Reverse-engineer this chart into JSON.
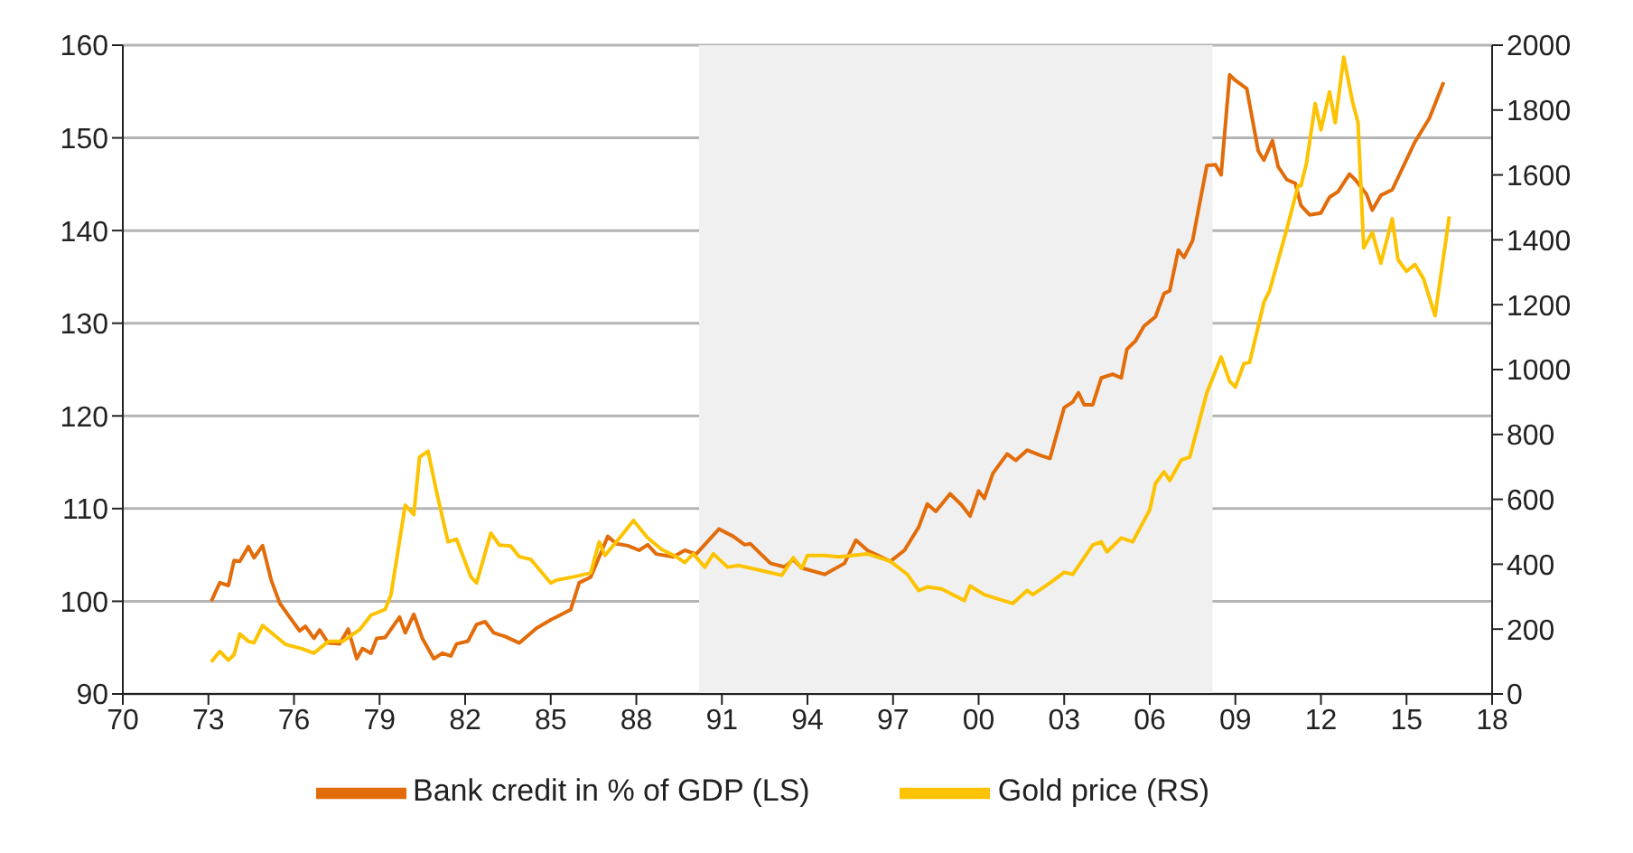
{
  "chart_data": {
    "type": "line",
    "xlim": [
      1970,
      2018
    ],
    "xticks": [
      {
        "value": 1970,
        "label": "70"
      },
      {
        "value": 1973,
        "label": "73"
      },
      {
        "value": 1976,
        "label": "76"
      },
      {
        "value": 1979,
        "label": "79"
      },
      {
        "value": 1982,
        "label": "82"
      },
      {
        "value": 1985,
        "label": "85"
      },
      {
        "value": 1988,
        "label": "88"
      },
      {
        "value": 1991,
        "label": "91"
      },
      {
        "value": 1994,
        "label": "94"
      },
      {
        "value": 1997,
        "label": "97"
      },
      {
        "value": 2000,
        "label": "00"
      },
      {
        "value": 2003,
        "label": "03"
      },
      {
        "value": 2006,
        "label": "06"
      },
      {
        "value": 2009,
        "label": "09"
      },
      {
        "value": 2012,
        "label": "12"
      },
      {
        "value": 2015,
        "label": "15"
      },
      {
        "value": 2018,
        "label": "18"
      }
    ],
    "ylim": [
      90,
      160
    ],
    "yticks": [
      90,
      100,
      110,
      120,
      130,
      140,
      150,
      160
    ],
    "y2lim": [
      0,
      2000
    ],
    "y2ticks": [
      0,
      200,
      400,
      600,
      800,
      1000,
      1200,
      1400,
      1600,
      1800,
      2000
    ],
    "grid": "y",
    "legend": "bottom",
    "marker": "none",
    "line_style": "solid",
    "bands": [
      {
        "axis": "x",
        "from": 1990.2,
        "to": 2008.2,
        "color": "#f0f0f0"
      }
    ],
    "series": [
      {
        "name": "Bank credit in % of GDP (LS)",
        "color": "#e36c0a",
        "x": [
          1973.1,
          1973.4,
          1973.7,
          1973.9,
          1974.1,
          1974.4,
          1974.6,
          1974.9,
          1975.2,
          1975.5,
          1975.8,
          1976.2,
          1976.4,
          1976.7,
          1976.9,
          1977.2,
          1977.6,
          1977.9,
          1978.2,
          1978.4,
          1978.7,
          1978.9,
          1979.2,
          1979.7,
          1979.9,
          1980.2,
          1980.5,
          1980.9,
          1981.2,
          1981.5,
          1981.7,
          1982.1,
          1982.4,
          1982.7,
          1983.0,
          1983.4,
          1983.9,
          1984.5,
          1985.0,
          1985.7,
          1986.0,
          1986.4,
          1986.7,
          1987.0,
          1987.3,
          1987.7,
          1988.1,
          1988.4,
          1988.7,
          1989.3,
          1989.7,
          1990.1,
          1990.9,
          1991.4,
          1991.8,
          1992.0,
          1992.7,
          1993.2,
          1993.5,
          1993.8,
          1994.6,
          1995.3,
          1995.7,
          1996.1,
          1996.9,
          1997.4,
          1997.9,
          1998.2,
          1998.5,
          1999.0,
          1999.4,
          1999.7,
          2000.0,
          2000.2,
          2000.5,
          2001.0,
          2001.3,
          2001.7,
          2002.2,
          2002.5,
          2003.0,
          2003.3,
          2003.5,
          2003.7,
          2004.0,
          2004.3,
          2004.7,
          2005.0,
          2005.2,
          2005.5,
          2005.8,
          2006.2,
          2006.5,
          2006.7,
          2007.0,
          2007.2,
          2007.5,
          2008.0,
          2008.3,
          2008.5,
          2008.8,
          2009.0,
          2009.4,
          2009.8,
          2010.0,
          2010.3,
          2010.5,
          2010.8,
          2011.1,
          2011.3,
          2011.6,
          2012.0,
          2012.3,
          2012.6,
          2013.0,
          2013.2,
          2013.6,
          2013.8,
          2014.1,
          2014.5,
          2015.3,
          2015.8,
          2016.3
        ],
        "values": [
          100,
          102,
          101.7,
          104.4,
          104.3,
          105.9,
          104.7,
          106,
          102.3,
          99.8,
          98.5,
          96.8,
          97.3,
          96,
          96.9,
          95.5,
          95.4,
          97,
          93.8,
          94.9,
          94.4,
          96,
          96.1,
          98.3,
          96.6,
          98.6,
          96,
          93.8,
          94.4,
          94.1,
          95.4,
          95.7,
          97.5,
          97.8,
          96.6,
          96.2,
          95.5,
          97.1,
          98,
          99.1,
          102,
          102.6,
          104.8,
          107,
          106.2,
          106,
          105.5,
          106.1,
          105.1,
          104.8,
          105.5,
          105.1,
          107.8,
          107,
          106.1,
          106.2,
          104.1,
          103.7,
          104.5,
          103.6,
          102.9,
          104.1,
          106.6,
          105.5,
          104.3,
          105.5,
          108,
          110.5,
          109.7,
          111.6,
          110.4,
          109.2,
          111.9,
          111.1,
          113.8,
          115.9,
          115.2,
          116.3,
          115.7,
          115.4,
          120.9,
          121.5,
          122.5,
          121.2,
          121.2,
          124.1,
          124.5,
          124.1,
          127.2,
          128.1,
          129.7,
          130.7,
          133.2,
          133.5,
          137.9,
          137.1,
          138.9,
          147,
          147.1,
          146,
          156.8,
          156.2,
          155.3,
          148.6,
          147.6,
          149.7,
          146.9,
          145.5,
          145.1,
          142.7,
          141.7,
          141.9,
          143.6,
          144.2,
          146.1,
          145.5,
          143.9,
          142.2,
          143.8,
          144.4,
          149.6,
          152.1,
          156
        ]
      },
      {
        "name": "Gold price (RS)",
        "color": "#fdc300",
        "axis": "y2",
        "x": [
          1973.1,
          1973.4,
          1973.7,
          1973.9,
          1974.1,
          1974.4,
          1974.6,
          1974.9,
          1975.7,
          1976.3,
          1976.7,
          1977.2,
          1977.7,
          1978.3,
          1978.7,
          1979.2,
          1979.4,
          1979.9,
          1980.2,
          1980.4,
          1980.7,
          1981.0,
          1981.4,
          1981.7,
          1982.2,
          1982.4,
          1982.9,
          1983.2,
          1983.6,
          1983.9,
          1984.3,
          1985.0,
          1985.2,
          1985.8,
          1986.4,
          1986.7,
          1986.9,
          1987.5,
          1987.9,
          1988.4,
          1988.9,
          1989.4,
          1989.7,
          1990.0,
          1990.4,
          1990.7,
          1991.2,
          1991.6,
          1992.5,
          1993.1,
          1993.5,
          1993.8,
          1994.0,
          1994.6,
          1995.1,
          1996.1,
          1996.9,
          1997.5,
          1997.9,
          1998.2,
          1998.7,
          1999.5,
          1999.7,
          2000.2,
          2001.2,
          2001.7,
          2001.9,
          2002.5,
          2003.0,
          2003.3,
          2004.0,
          2004.3,
          2004.5,
          2005.0,
          2005.4,
          2006.0,
          2006.2,
          2006.5,
          2006.7,
          2007.1,
          2007.4,
          2008.0,
          2008.5,
          2008.8,
          2009.0,
          2009.3,
          2009.5,
          2010.0,
          2010.2,
          2010.8,
          2011.2,
          2011.3,
          2011.5,
          2011.8,
          2012.0,
          2012.3,
          2012.5,
          2012.8,
          2013.1,
          2013.3,
          2013.5,
          2013.8,
          2014.1,
          2014.5,
          2014.7,
          2015.0,
          2015.3,
          2015.6,
          2016.0,
          2016.5
        ],
        "values": [
          99,
          131,
          104,
          121,
          185,
          162,
          158,
          211,
          153,
          139,
          126,
          162,
          162,
          198,
          243,
          261,
          306,
          582,
          553,
          730,
          748,
          622,
          469,
          477,
          361,
          342,
          496,
          459,
          456,
          423,
          415,
          342,
          351,
          361,
          373,
          469,
          427,
          490,
          535,
          481,
          445,
          423,
          405,
          432,
          391,
          432,
          391,
          396,
          378,
          366,
          420,
          388,
          427,
          427,
          423,
          432,
          409,
          369,
          319,
          330,
          324,
          288,
          333,
          306,
          279,
          319,
          306,
          342,
          375,
          369,
          459,
          469,
          438,
          481,
          469,
          568,
          649,
          685,
          658,
          721,
          730,
          928,
          1039,
          964,
          946,
          1018,
          1022,
          1207,
          1243,
          1432,
          1567,
          1567,
          1639,
          1820,
          1739,
          1856,
          1761,
          1963,
          1829,
          1761,
          1375,
          1423,
          1328,
          1465,
          1339,
          1303,
          1324,
          1279,
          1166,
          1472
        ]
      }
    ]
  }
}
